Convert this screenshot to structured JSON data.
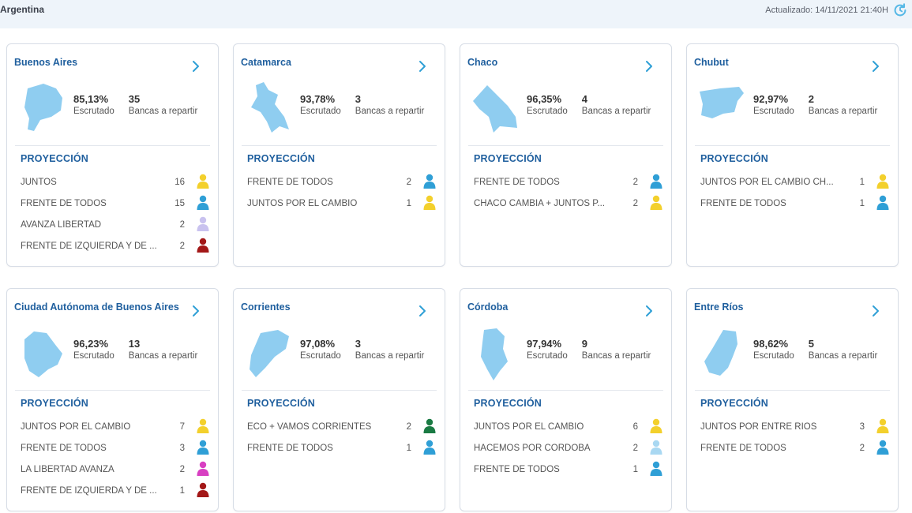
{
  "header": {
    "country": "Argentina",
    "updated": "Actualizado: 14/11/2021 21:40H"
  },
  "labels": {
    "escrutado": "Escrutado",
    "bancas": "Bancas a repartir",
    "proyeccion": "PROYECCIÓN"
  },
  "colors": {
    "accent": "#1f5f9e",
    "map": "#8fcdf0",
    "yellow": "#f3d02c",
    "blue": "#2f9fd6",
    "lilac": "#c9c2ef",
    "red": "#a31818",
    "pink": "#d83fc2",
    "green": "#1a7a43",
    "lightblue": "#a9d8f2"
  },
  "cards": [
    {
      "name": "Buenos Aires",
      "escrutado": "85,13%",
      "bancas": "35",
      "parties": [
        {
          "name": "JUNTOS",
          "seats": "16",
          "color": "yellow"
        },
        {
          "name": "FRENTE DE TODOS",
          "seats": "15",
          "color": "blue"
        },
        {
          "name": "AVANZA LIBERTAD",
          "seats": "2",
          "color": "lilac"
        },
        {
          "name": "FRENTE DE IZQUIERDA Y DE ...",
          "seats": "2",
          "color": "red"
        }
      ]
    },
    {
      "name": "Catamarca",
      "escrutado": "93,78%",
      "bancas": "3",
      "parties": [
        {
          "name": "FRENTE DE TODOS",
          "seats": "2",
          "color": "blue"
        },
        {
          "name": "JUNTOS POR EL CAMBIO",
          "seats": "1",
          "color": "yellow"
        }
      ]
    },
    {
      "name": "Chaco",
      "escrutado": "96,35%",
      "bancas": "4",
      "parties": [
        {
          "name": "FRENTE DE TODOS",
          "seats": "2",
          "color": "blue"
        },
        {
          "name": "CHACO CAMBIA + JUNTOS P...",
          "seats": "2",
          "color": "yellow"
        }
      ]
    },
    {
      "name": "Chubut",
      "escrutado": "92,97%",
      "bancas": "2",
      "parties": [
        {
          "name": "JUNTOS POR EL CAMBIO CH...",
          "seats": "1",
          "color": "yellow"
        },
        {
          "name": "FRENTE DE TODOS",
          "seats": "1",
          "color": "blue"
        }
      ]
    },
    {
      "name": "Ciudad Autónoma de Buenos Aires",
      "escrutado": "96,23%",
      "bancas": "13",
      "parties": [
        {
          "name": "JUNTOS POR EL CAMBIO",
          "seats": "7",
          "color": "yellow"
        },
        {
          "name": "FRENTE DE TODOS",
          "seats": "3",
          "color": "blue"
        },
        {
          "name": "LA LIBERTAD AVANZA",
          "seats": "2",
          "color": "pink"
        },
        {
          "name": "FRENTE DE IZQUIERDA Y DE ...",
          "seats": "1",
          "color": "red"
        }
      ]
    },
    {
      "name": "Corrientes",
      "escrutado": "97,08%",
      "bancas": "3",
      "parties": [
        {
          "name": "ECO + VAMOS CORRIENTES",
          "seats": "2",
          "color": "green"
        },
        {
          "name": "FRENTE DE TODOS",
          "seats": "1",
          "color": "blue"
        }
      ]
    },
    {
      "name": "Córdoba",
      "escrutado": "97,94%",
      "bancas": "9",
      "parties": [
        {
          "name": "JUNTOS POR EL CAMBIO",
          "seats": "6",
          "color": "yellow"
        },
        {
          "name": "HACEMOS POR CÓRDOBA",
          "seats": "2",
          "color": "lightblue"
        },
        {
          "name": "FRENTE DE TODOS",
          "seats": "1",
          "color": "blue"
        }
      ]
    },
    {
      "name": "Entre Ríos",
      "escrutado": "98,62%",
      "bancas": "5",
      "parties": [
        {
          "name": "JUNTOS POR ENTRE RÍOS",
          "seats": "3",
          "color": "yellow"
        },
        {
          "name": "FRENTE DE TODOS",
          "seats": "2",
          "color": "blue"
        }
      ]
    }
  ]
}
